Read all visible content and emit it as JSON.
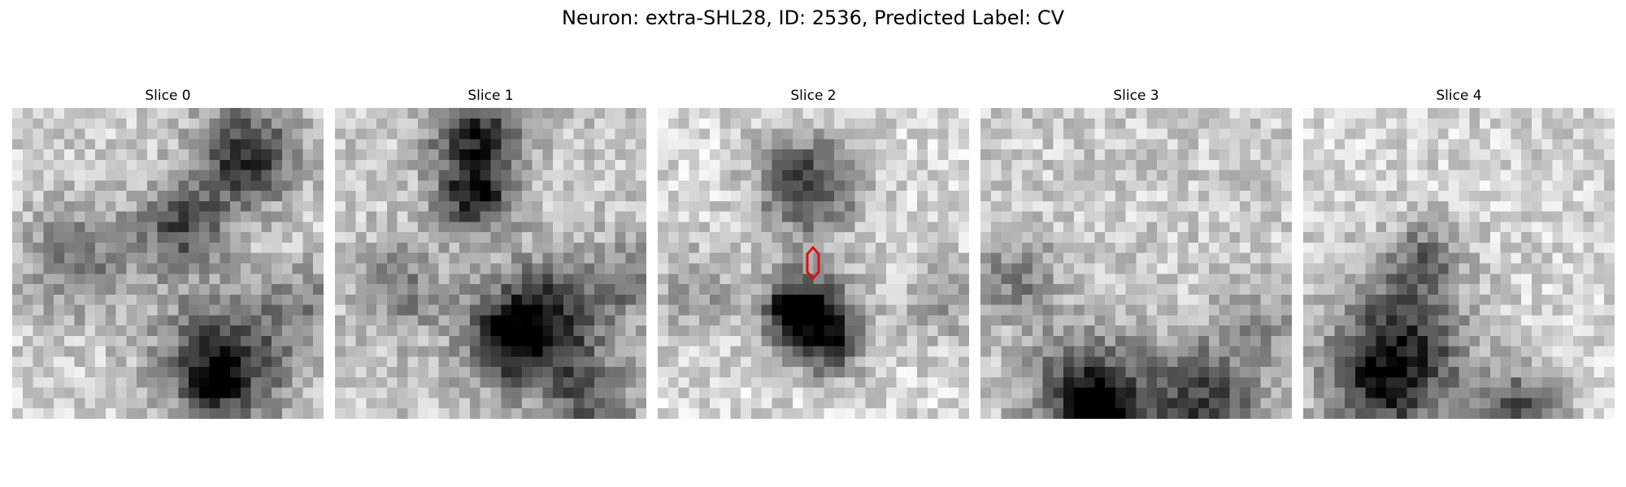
{
  "title": "Neuron: extra-SHL28, ID: 2536, Predicted Label: CV",
  "slices": [
    {
      "label": "Slice 0"
    },
    {
      "label": "Slice 1"
    },
    {
      "label": "Slice 2",
      "marker": true
    },
    {
      "label": "Slice 3"
    },
    {
      "label": "Slice 4"
    }
  ],
  "colors": {
    "marker": "#dd1111",
    "background": "#ffffff"
  }
}
